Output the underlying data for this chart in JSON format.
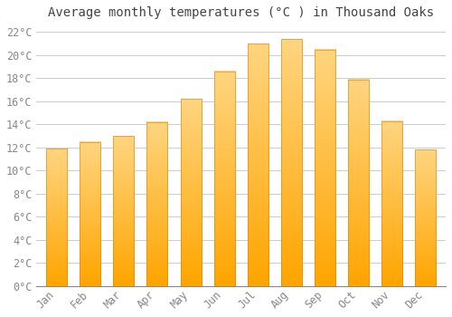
{
  "title": "Average monthly temperatures (°C ) in Thousand Oaks",
  "months": [
    "Jan",
    "Feb",
    "Mar",
    "Apr",
    "May",
    "Jun",
    "Jul",
    "Aug",
    "Sep",
    "Oct",
    "Nov",
    "Dec"
  ],
  "temperatures": [
    11.9,
    12.5,
    13.0,
    14.2,
    16.2,
    18.6,
    21.0,
    21.4,
    20.5,
    17.9,
    14.3,
    11.8
  ],
  "bar_color_bottom": "#FFA500",
  "bar_color_top": "#FFD070",
  "bar_edge_color": "#E08000",
  "ylim": [
    0,
    22.5
  ],
  "yticks": [
    0,
    2,
    4,
    6,
    8,
    10,
    12,
    14,
    16,
    18,
    20,
    22
  ],
  "background_color": "#FFFFFF",
  "grid_color": "#CCCCCC",
  "title_fontsize": 10,
  "tick_fontsize": 8.5,
  "font_family": "monospace",
  "tick_color": "#888888",
  "title_color": "#444444"
}
